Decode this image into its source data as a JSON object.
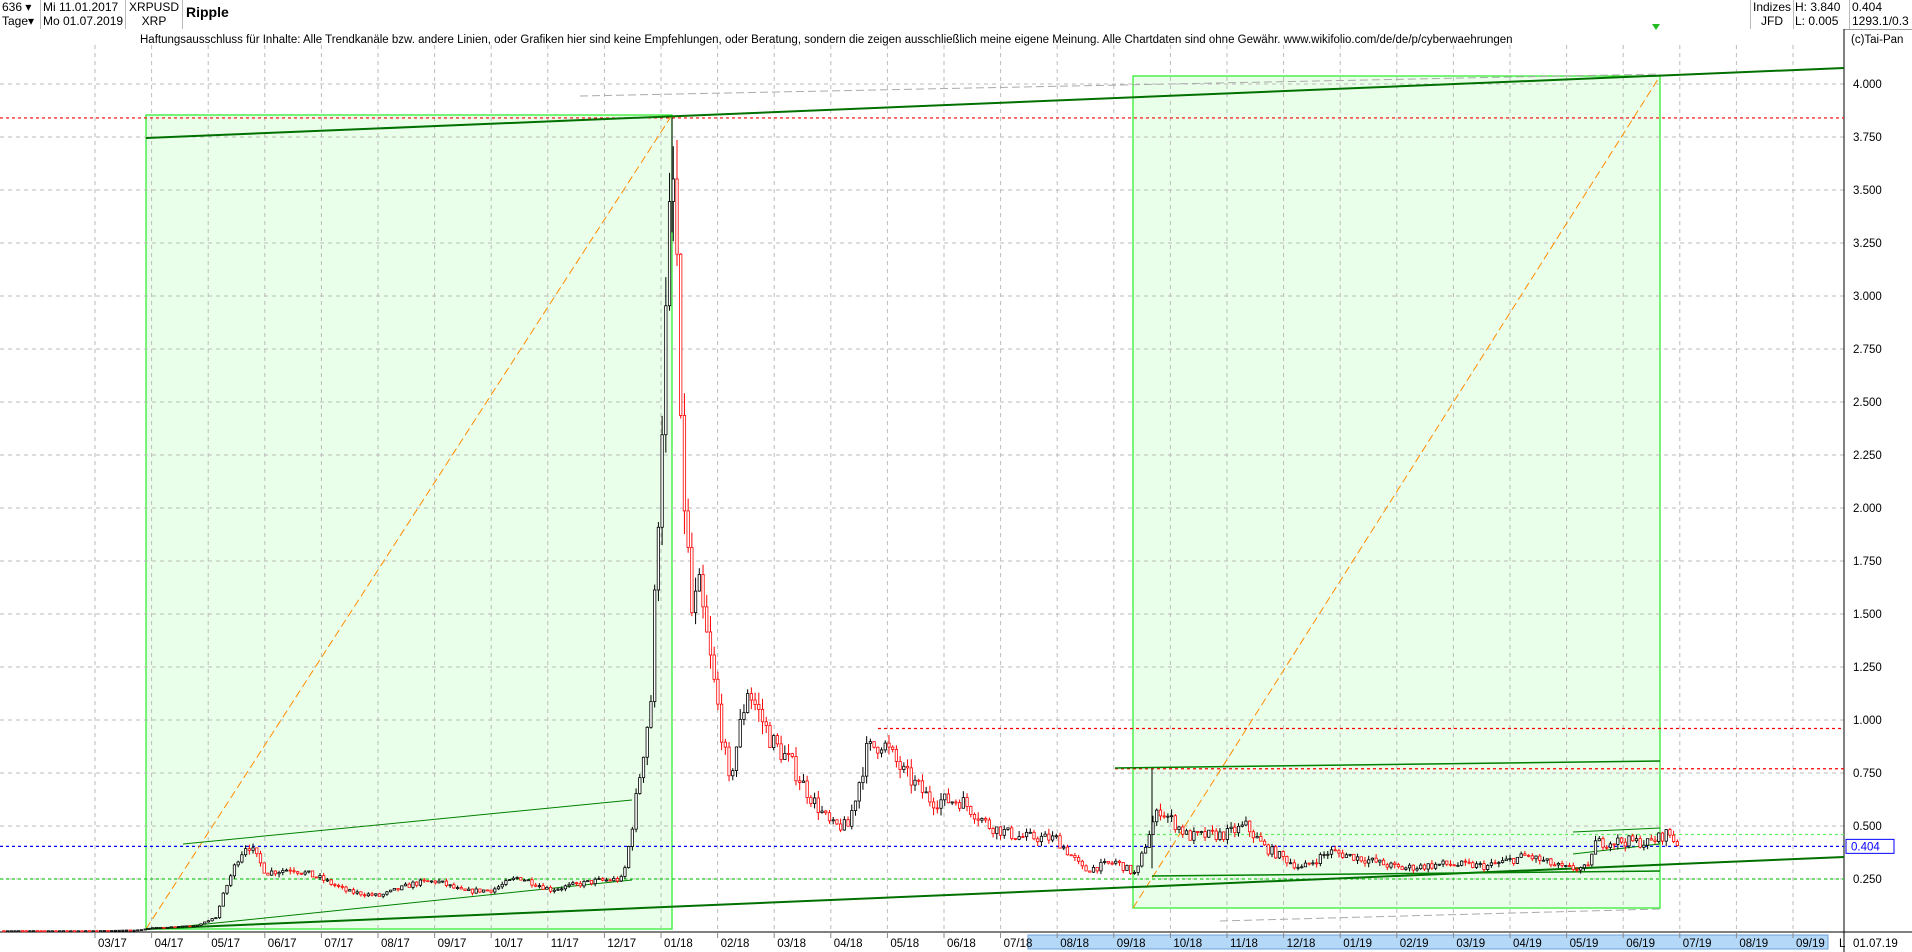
{
  "header": {
    "bars_count": "636",
    "period": "Tage",
    "start_date": "Mi 11.01.2017",
    "end_date": "Mo 01.07.2019",
    "symbol": "XRPUSD",
    "symbol_short": "XRP",
    "name": "Ripple",
    "market": "Indizes",
    "source": "JFD",
    "high": "H: 3.840",
    "low": "L: 0.005",
    "last": "0.404",
    "info": "1293.1/0.3"
  },
  "disclaimer": "Haftungsausschluss für Inhalte: Alle Trendkanäle bzw. andere Linien, oder Grafiken hier sind keine Empfehlungen, oder Beratung, sondern die zeigen ausschließlich meine eigene Meinung. Alle Chartdaten sind ohne Gewähr.  www.wikifolio.com/de/de/p/cyberwaehrungen",
  "copyright": "(c)Tai-Pan",
  "footer": {
    "scale_mode": "L",
    "last_date": "01.07.19"
  },
  "colors": {
    "up_candle": "#000000",
    "down_candle": "#ff0000",
    "box_fill": "#eaffea",
    "box_border": "#33ee33",
    "trend_line": "#008000",
    "fib_diagonal": "#ff8c00",
    "resistance": "#ff0000",
    "current_price": "#0000ff",
    "support": "#22cc22"
  },
  "chart_data": {
    "type": "candlestick",
    "title": "",
    "x_ticks": [
      "03.17",
      "04.17",
      "05.17",
      "06.17",
      "07.17",
      "08.17",
      "09.17",
      "10.17",
      "11.17",
      "12.17",
      "01.18",
      "02.18",
      "03.18",
      "04.18",
      "05.18",
      "06.18",
      "07.18",
      "08.18",
      "09.18",
      "10.18",
      "11.18",
      "12.18",
      "01.19",
      "02.19",
      "03.19",
      "04.19",
      "05.19",
      "06.19",
      "07.19",
      "08.19",
      "09.19"
    ],
    "y_ticks": [
      "0.250",
      "0.500",
      "0.750",
      "1.000",
      "1.250",
      "1.500",
      "1.750",
      "2.000",
      "2.250",
      "2.500",
      "2.750",
      "3.000",
      "3.250",
      "3.500",
      "3.750",
      "4.000"
    ],
    "ylim": [
      0.0,
      4.1
    ],
    "grid": true,
    "current_price": 0.404,
    "horizontal_levels": {
      "resistance": [
        3.84,
        0.96,
        0.77
      ],
      "support": [
        0.46,
        0.25
      ],
      "current": 0.404
    },
    "approx_closes": [
      [
        "2017-01-11",
        0.006
      ],
      [
        "2017-03-01",
        0.006
      ],
      [
        "2017-03-25",
        0.01
      ],
      [
        "2017-04-01",
        0.02
      ],
      [
        "2017-04-25",
        0.03
      ],
      [
        "2017-05-05",
        0.07
      ],
      [
        "2017-05-10",
        0.2
      ],
      [
        "2017-05-17",
        0.35
      ],
      [
        "2017-05-22",
        0.42
      ],
      [
        "2017-06-01",
        0.28
      ],
      [
        "2017-06-15",
        0.3
      ],
      [
        "2017-07-01",
        0.25
      ],
      [
        "2017-07-15",
        0.19
      ],
      [
        "2017-08-01",
        0.17
      ],
      [
        "2017-08-20",
        0.23
      ],
      [
        "2017-09-01",
        0.24
      ],
      [
        "2017-09-15",
        0.19
      ],
      [
        "2017-10-01",
        0.2
      ],
      [
        "2017-10-15",
        0.26
      ],
      [
        "2017-11-01",
        0.2
      ],
      [
        "2017-11-25",
        0.24
      ],
      [
        "2017-12-10",
        0.25
      ],
      [
        "2017-12-14",
        0.45
      ],
      [
        "2017-12-20",
        0.8
      ],
      [
        "2017-12-25",
        1.1
      ],
      [
        "2017-12-29",
        2.0
      ],
      [
        "2018-01-04",
        3.3
      ],
      [
        "2018-01-07",
        3.6
      ],
      [
        "2018-01-10",
        2.3
      ],
      [
        "2018-01-16",
        1.5
      ],
      [
        "2018-01-20",
        1.6
      ],
      [
        "2018-02-01",
        0.95
      ],
      [
        "2018-02-05",
        0.7
      ],
      [
        "2018-02-15",
        1.15
      ],
      [
        "2018-02-28",
        0.9
      ],
      [
        "2018-03-10",
        0.8
      ],
      [
        "2018-03-20",
        0.65
      ],
      [
        "2018-04-01",
        0.5
      ],
      [
        "2018-04-10",
        0.5
      ],
      [
        "2018-04-20",
        0.85
      ],
      [
        "2018-04-28",
        0.9
      ],
      [
        "2018-05-10",
        0.75
      ],
      [
        "2018-05-25",
        0.62
      ],
      [
        "2018-06-10",
        0.62
      ],
      [
        "2018-06-25",
        0.5
      ],
      [
        "2018-07-10",
        0.45
      ],
      [
        "2018-07-31",
        0.44
      ],
      [
        "2018-08-15",
        0.29
      ],
      [
        "2018-09-01",
        0.33
      ],
      [
        "2018-09-12",
        0.27
      ],
      [
        "2018-09-20",
        0.5
      ],
      [
        "2018-09-25",
        0.58
      ],
      [
        "2018-10-10",
        0.45
      ],
      [
        "2018-10-30",
        0.46
      ],
      [
        "2018-11-10",
        0.5
      ],
      [
        "2018-11-20",
        0.4
      ],
      [
        "2018-12-10",
        0.3
      ],
      [
        "2018-12-25",
        0.38
      ],
      [
        "2019-01-10",
        0.35
      ],
      [
        "2019-02-01",
        0.3
      ],
      [
        "2019-02-25",
        0.32
      ],
      [
        "2019-03-20",
        0.31
      ],
      [
        "2019-04-10",
        0.36
      ],
      [
        "2019-04-30",
        0.3
      ],
      [
        "2019-05-13",
        0.3
      ],
      [
        "2019-05-16",
        0.42
      ],
      [
        "2019-06-01",
        0.43
      ],
      [
        "2019-06-15",
        0.42
      ],
      [
        "2019-06-25",
        0.47
      ],
      [
        "2019-07-01",
        0.404
      ]
    ]
  }
}
